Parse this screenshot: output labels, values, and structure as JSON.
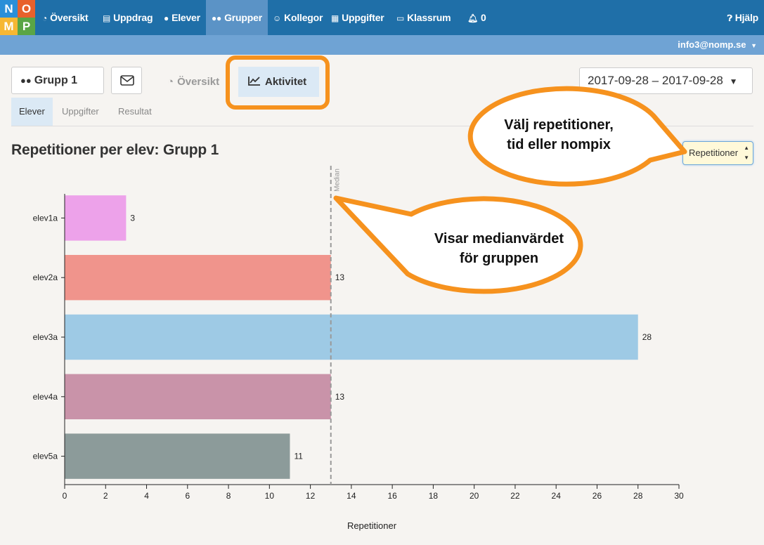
{
  "logo": {
    "letters": [
      "N",
      "O",
      "M",
      "P"
    ],
    "colors": [
      "#2a8fd8",
      "#e8612c",
      "#f6b733",
      "#5aa546"
    ]
  },
  "nav": {
    "items": [
      {
        "label": "Översikt",
        "icon": "dashboard-icon"
      },
      {
        "label": "Uppdrag",
        "icon": "book-icon"
      },
      {
        "label": "Elever",
        "icon": "user-icon"
      },
      {
        "label": "Grupper",
        "icon": "users-icon",
        "active": true
      },
      {
        "label": "Kollegor",
        "icon": "smiley-icon"
      },
      {
        "label": "Uppgifter",
        "icon": "grid-icon"
      },
      {
        "label": "Klassrum",
        "icon": "monitor-icon"
      },
      {
        "label": "0",
        "icon": "bell-icon"
      }
    ],
    "help": "Hjälp",
    "user": "info3@nomp.se"
  },
  "toolbar": {
    "group_label": "Grupp 1",
    "tabs": [
      "Översikt",
      "Aktivitet"
    ],
    "date_range": "2017-09-28 – 2017-09-28"
  },
  "subtabs": [
    "Elever",
    "Uppgifter",
    "Resultat"
  ],
  "heading": "Repetitioner per elev: Grupp 1",
  "select": {
    "value": "Repetitioner"
  },
  "callouts": {
    "select": [
      "Välj repetitioner,",
      "tid eller nompix"
    ],
    "median": [
      "Visar medianvärdet",
      "för gruppen"
    ]
  },
  "chart_data": {
    "type": "bar",
    "orientation": "horizontal",
    "categories": [
      "elev1a",
      "elev2a",
      "elev3a",
      "elev4a",
      "elev5a"
    ],
    "values": [
      3,
      13,
      28,
      13,
      11
    ],
    "colors": [
      "#eda2ea",
      "#f0948c",
      "#9ecae5",
      "#c993a9",
      "#8c9b9a"
    ],
    "xlabel": "Repetitioner",
    "xlim": [
      0,
      30
    ],
    "xticks": [
      0,
      2,
      4,
      6,
      8,
      10,
      12,
      14,
      16,
      18,
      20,
      22,
      24,
      26,
      28,
      30
    ],
    "median": 13,
    "median_label": "Median"
  }
}
